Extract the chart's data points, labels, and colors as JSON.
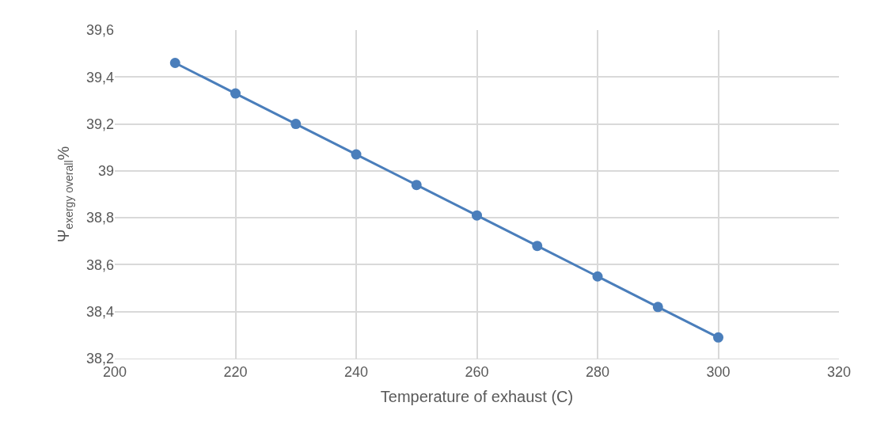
{
  "chart_data": {
    "type": "line",
    "xlabel": "Temperature of exhaust (C)",
    "ylabel": "Ψ$_{exergy overall}$%",
    "x": [
      210,
      220,
      230,
      240,
      250,
      260,
      270,
      280,
      290,
      300
    ],
    "series": [
      {
        "color": "#4a7ebb",
        "values": [
          39.46,
          39.33,
          39.2,
          39.07,
          38.94,
          38.81,
          38.68,
          38.55,
          38.42,
          38.29
        ]
      }
    ],
    "xlim": [
      200,
      320
    ],
    "xticks": [
      200,
      220,
      240,
      260,
      280,
      300,
      320
    ],
    "ylim": [
      38.2,
      39.6
    ],
    "yticks": [
      {
        "value": 38.2,
        "label": "38,2"
      },
      {
        "value": 38.4,
        "label": "38,4"
      },
      {
        "value": 38.6,
        "label": "38,6"
      },
      {
        "value": 38.8,
        "label": "38,8"
      },
      {
        "value": 39,
        "label": "39"
      },
      {
        "value": 39.2,
        "label": "39,2"
      },
      {
        "value": 39.4,
        "label": "39,4"
      },
      {
        "value": 39.6,
        "label": "39,6"
      }
    ],
    "grid": true,
    "marker": "circle",
    "line_style": "solid",
    "legend": false
  }
}
